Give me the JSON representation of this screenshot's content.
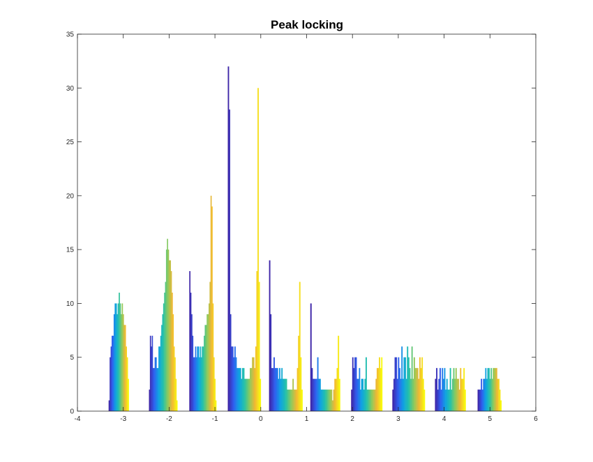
{
  "chart_data": {
    "type": "bar",
    "title": "Peak locking",
    "xlabel": "",
    "ylabel": "",
    "xlim": [
      -4,
      6
    ],
    "ylim": [
      0,
      35
    ],
    "xticks": [
      -4,
      -3,
      -2,
      -1,
      0,
      1,
      2,
      3,
      4,
      5,
      6
    ],
    "yticks": [
      0,
      5,
      10,
      15,
      20,
      25,
      30,
      35
    ],
    "grid": false,
    "colormap": [
      "#3e26a8",
      "#2f5ff0",
      "#0fa2e2",
      "#24c1aa",
      "#8bca5d",
      "#f2b733",
      "#f8fa0d"
    ],
    "groups": [
      {
        "x_start": -3.32,
        "x_end": -2.88,
        "values": [
          1,
          5,
          6,
          7,
          7,
          9,
          10,
          10,
          9,
          10,
          11,
          10,
          9,
          10,
          9,
          8,
          8,
          6,
          5,
          3
        ]
      },
      {
        "x_start": -2.44,
        "x_end": -1.82,
        "values": [
          2,
          7,
          6,
          7,
          4,
          4,
          5,
          5,
          4,
          4,
          6,
          6,
          7,
          8,
          9,
          10,
          11,
          12,
          15,
          16,
          15,
          14,
          14,
          13,
          11,
          9,
          6,
          5,
          3,
          1
        ]
      },
      {
        "x_start": -1.56,
        "x_end": -0.97,
        "values": [
          13,
          11,
          9,
          7,
          5,
          5,
          6,
          5,
          6,
          6,
          5,
          6,
          5,
          6,
          6,
          7,
          8,
          8,
          9,
          9,
          10,
          12,
          20,
          19,
          10,
          5,
          3,
          1
        ]
      },
      {
        "x_start": -0.72,
        "x_end": 0.0,
        "values": [
          32,
          28,
          9,
          6,
          6,
          5,
          6,
          5,
          4,
          4,
          4,
          4,
          3,
          4,
          4,
          3,
          3,
          3,
          3,
          3,
          4,
          4,
          5,
          5,
          4,
          6,
          13,
          30,
          12,
          3
        ]
      },
      {
        "x_start": 0.18,
        "x_end": 0.91,
        "values": [
          14,
          9,
          4,
          4,
          5,
          4,
          4,
          4,
          3,
          4,
          3,
          4,
          3,
          3,
          3,
          3,
          2,
          2,
          2,
          2,
          2,
          3,
          2,
          2,
          2,
          4,
          7,
          12,
          5,
          2
        ]
      },
      {
        "x_start": 1.08,
        "x_end": 1.73,
        "values": [
          10,
          4,
          3,
          3,
          3,
          3,
          5,
          3,
          3,
          2,
          2,
          2,
          2,
          2,
          2,
          2,
          2,
          2,
          2,
          1,
          2,
          3,
          3,
          4,
          7,
          3
        ]
      },
      {
        "x_start": 1.97,
        "x_end": 2.65,
        "values": [
          2,
          5,
          4,
          5,
          5,
          3,
          3,
          4,
          2,
          3,
          3,
          2,
          3,
          5,
          2,
          2,
          2,
          2,
          2,
          2,
          2,
          2,
          3,
          4,
          4,
          5,
          4,
          5
        ]
      },
      {
        "x_start": 2.87,
        "x_end": 3.58,
        "values": [
          2,
          3,
          5,
          5,
          3,
          5,
          4,
          3,
          6,
          3,
          5,
          5,
          3,
          6,
          5,
          4,
          3,
          6,
          3,
          5,
          4,
          4,
          4,
          3,
          5,
          4,
          5,
          3,
          2
        ]
      },
      {
        "x_start": 3.8,
        "x_end": 4.47,
        "values": [
          3,
          4,
          2,
          3,
          4,
          2,
          4,
          3,
          4,
          2,
          3,
          2,
          2,
          4,
          2,
          3,
          4,
          3,
          4,
          3,
          3,
          2,
          4,
          3,
          3,
          4,
          2
        ]
      },
      {
        "x_start": 4.73,
        "x_end": 5.25,
        "values": [
          2,
          2,
          2,
          3,
          2,
          3,
          3,
          4,
          3,
          4,
          4,
          3,
          4,
          3,
          4,
          4,
          4,
          4,
          3,
          3,
          2,
          1
        ]
      }
    ]
  }
}
